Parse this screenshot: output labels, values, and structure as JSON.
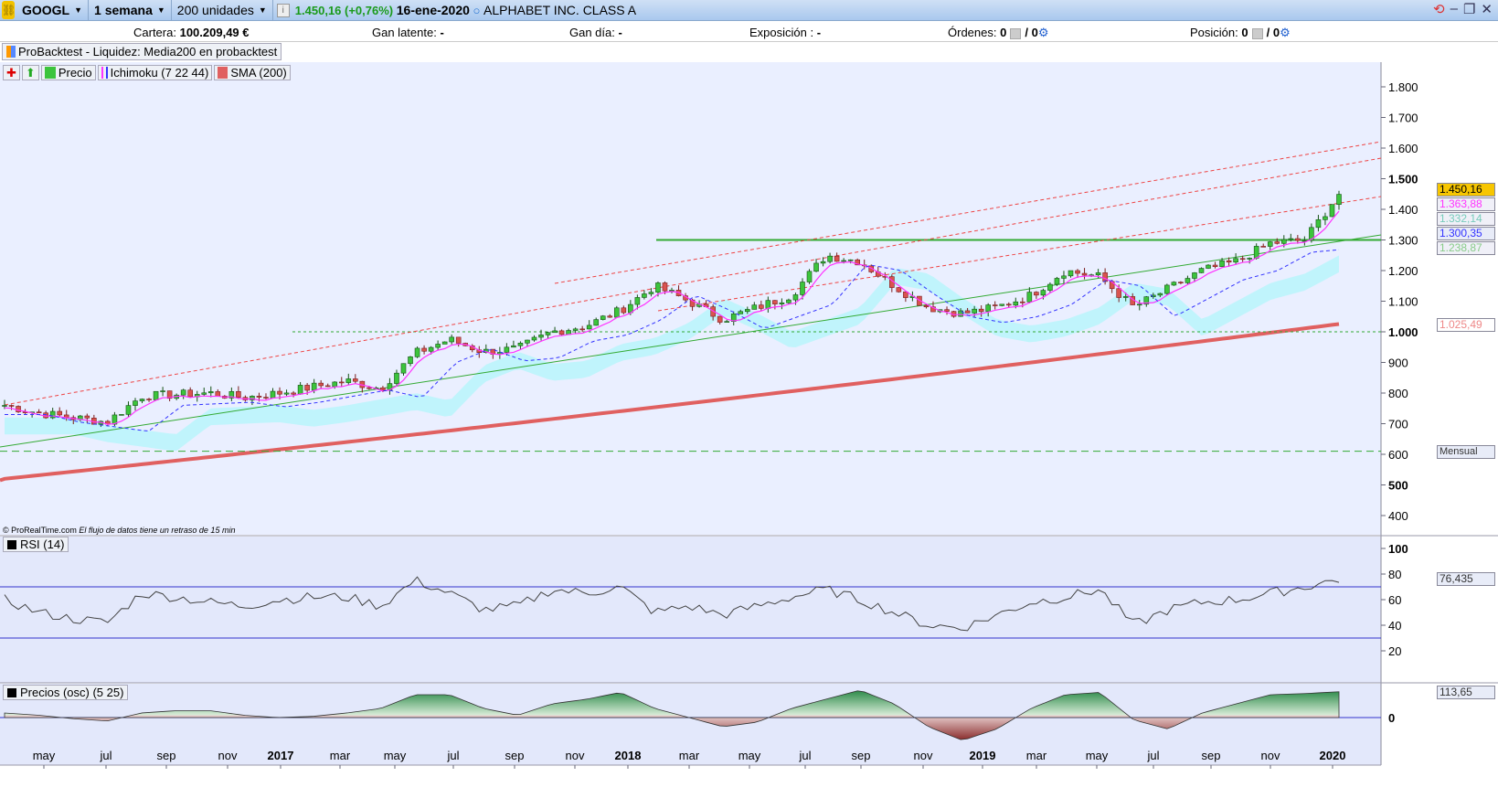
{
  "toolbar": {
    "symbol": "GOOGL",
    "timeframe": "1 semana",
    "units": "200 unidades",
    "price": "1.450,16 (+0,76%)",
    "date": "16-ene-2020",
    "name": "ALPHABET INC. CLASS A"
  },
  "info": {
    "cartera_label": "Cartera:",
    "cartera_value": "100.209,49 €",
    "gan_latente_label": "Gan latente:",
    "gan_latente_value": "-",
    "gan_dia_label": "Gan día:",
    "gan_dia_value": "-",
    "exposicion_label": "Exposición :",
    "exposicion_value": "-",
    "ordenes_label": "Órdenes:",
    "ordenes_a": "0",
    "ordenes_b": "/ 0",
    "posicion_label": "Posición:",
    "posicion_a": "0",
    "posicion_b": "/ 0"
  },
  "backtest_label": "ProBacktest - Liquidez: Media200 en probacktest",
  "legend": {
    "precio": "Precio",
    "ichimoku": "Ichimoku (7 22 44)",
    "sma": "SMA (200)"
  },
  "credit": {
    "site": "© ProRealTime.com",
    "note": "El flujo de datos tiene un retraso de 15 min"
  },
  "tags": {
    "last": "1.450,16",
    "tenkan": "1.363,88",
    "kijun": "1.300,35",
    "cloud_a": "1.332,14",
    "cloud_b": "1.238,87",
    "sma": "1.025,49",
    "mensual": "Mensual",
    "rsi": "76,435",
    "osc": "113,65"
  },
  "colors": {
    "up": "#3cc43c",
    "down": "#d9534f",
    "sma": "#e06060",
    "tenkan": "#ff33ff",
    "kijun": "#3333ff",
    "cloud": "#b8f4fb"
  },
  "panels": {
    "rsi_label": "RSI (14)",
    "osc_label": "Precios (osc) (5 25)"
  },
  "chart_data": {
    "type": "candlestick",
    "price_axis": {
      "ticks": [
        "1.800",
        "1.700",
        "1.600",
        "1.500",
        "1.400",
        "1.300",
        "1.200",
        "1.100",
        "1.000",
        "900",
        "800",
        "700",
        "600",
        "500",
        "400"
      ],
      "tick_values": [
        1800,
        1700,
        1600,
        1500,
        1400,
        1300,
        1200,
        1100,
        1000,
        900,
        800,
        700,
        600,
        500,
        400
      ]
    },
    "rsi_axis": {
      "ticks": [
        "100",
        "80",
        "60",
        "40",
        "20"
      ],
      "tick_values": [
        100,
        80,
        60,
        40,
        20
      ],
      "levels": [
        70,
        30
      ]
    },
    "osc_axis": {
      "ticks": [
        "0"
      ],
      "tick_values": [
        0
      ]
    },
    "x_labels": [
      "may",
      "jul",
      "sep",
      "nov",
      "2017",
      "mar",
      "may",
      "jul",
      "sep",
      "nov",
      "2018",
      "mar",
      "may",
      "jul",
      "sep",
      "nov",
      "2019",
      "mar",
      "may",
      "jul",
      "sep",
      "nov",
      "2020"
    ],
    "close_anchors": [
      760,
      735,
      720,
      705,
      790,
      795,
      800,
      785,
      800,
      820,
      840,
      815,
      930,
      975,
      935,
      945,
      1000,
      1020,
      1070,
      1150,
      1100,
      1040,
      1080,
      1120,
      1250,
      1230,
      1150,
      1080,
      1060,
      1080,
      1120,
      1200,
      1180,
      1080,
      1140,
      1200,
      1230,
      1290,
      1300,
      1450
    ],
    "rsi_anchors": [
      60,
      50,
      45,
      42,
      65,
      62,
      58,
      55,
      60,
      62,
      62,
      55,
      75,
      65,
      52,
      55,
      68,
      65,
      70,
      50,
      55,
      48,
      55,
      62,
      68,
      60,
      50,
      40,
      38,
      48,
      58,
      62,
      68,
      40,
      52,
      58,
      60,
      65,
      70,
      76
    ],
    "osc_anchors": [
      20,
      10,
      -5,
      -15,
      20,
      30,
      30,
      10,
      0,
      5,
      20,
      40,
      100,
      100,
      40,
      10,
      60,
      80,
      110,
      40,
      0,
      -40,
      -20,
      40,
      80,
      120,
      60,
      -40,
      -100,
      -50,
      40,
      100,
      110,
      -10,
      -50,
      20,
      60,
      100,
      105,
      113
    ],
    "sma200_range": [
      520,
      1025.49
    ],
    "horizontal_levels": [
      1300,
      1000,
      610
    ]
  }
}
